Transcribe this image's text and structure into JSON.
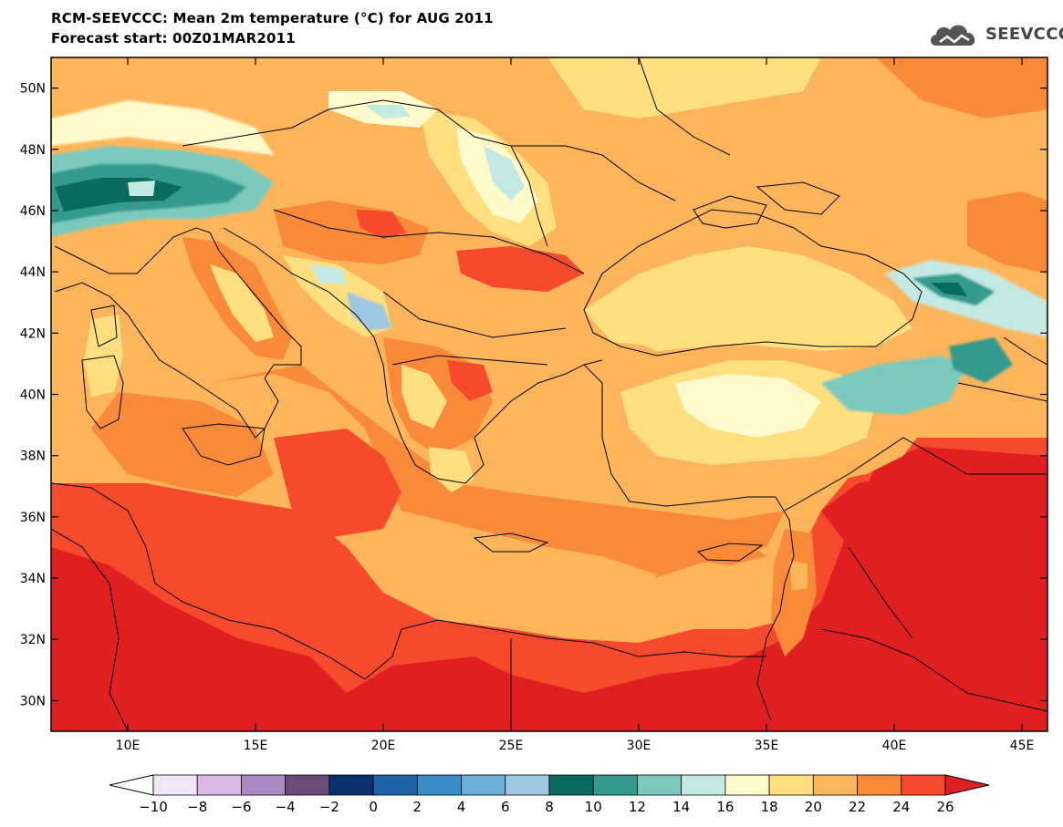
{
  "header": {
    "title": "RCM-SEEVCCC: Mean 2m temperature (°C) for AUG 2011",
    "subtitle": "Forecast start: 00Z01MAR2011"
  },
  "logo": {
    "text": "SEEVCCC",
    "icon": "cloud-icon"
  },
  "map": {
    "lon_range": [
      7,
      46
    ],
    "lat_range": [
      29,
      51
    ],
    "x_ticks": [
      {
        "value": 10,
        "label": "10E"
      },
      {
        "value": 15,
        "label": "15E"
      },
      {
        "value": 20,
        "label": "20E"
      },
      {
        "value": 25,
        "label": "25E"
      },
      {
        "value": 30,
        "label": "30E"
      },
      {
        "value": 35,
        "label": "35E"
      },
      {
        "value": 40,
        "label": "40E"
      },
      {
        "value": 45,
        "label": "45E"
      }
    ],
    "y_ticks": [
      {
        "value": 30,
        "label": "30N"
      },
      {
        "value": 32,
        "label": "32N"
      },
      {
        "value": 34,
        "label": "34N"
      },
      {
        "value": 36,
        "label": "36N"
      },
      {
        "value": 38,
        "label": "38N"
      },
      {
        "value": 40,
        "label": "40N"
      },
      {
        "value": 42,
        "label": "42N"
      },
      {
        "value": 44,
        "label": "44N"
      },
      {
        "value": 46,
        "label": "46N"
      },
      {
        "value": 48,
        "label": "48N"
      },
      {
        "value": 50,
        "label": "50N"
      }
    ]
  },
  "colorbar": {
    "levels": [
      "−10",
      "−8",
      "−6",
      "−4",
      "−2",
      "0",
      "2",
      "4",
      "6",
      "8",
      "10",
      "12",
      "14",
      "16",
      "18",
      "20",
      "22",
      "24",
      "26"
    ],
    "colors": [
      "#f0e8f6",
      "#d9b8e4",
      "#a98ac3",
      "#6b4c76",
      "#0b2f6a",
      "#1e62a5",
      "#3a8cc6",
      "#6aaed8",
      "#9ec8e2",
      "#0a6a5e",
      "#359a8e",
      "#7ccabd",
      "#c4e8e2",
      "#fffbcc",
      "#ffdf80",
      "#fdb55b",
      "#f98a3a",
      "#f54a2c"
    ],
    "under_color": "#ffffff",
    "over_color": "#e02020"
  }
}
